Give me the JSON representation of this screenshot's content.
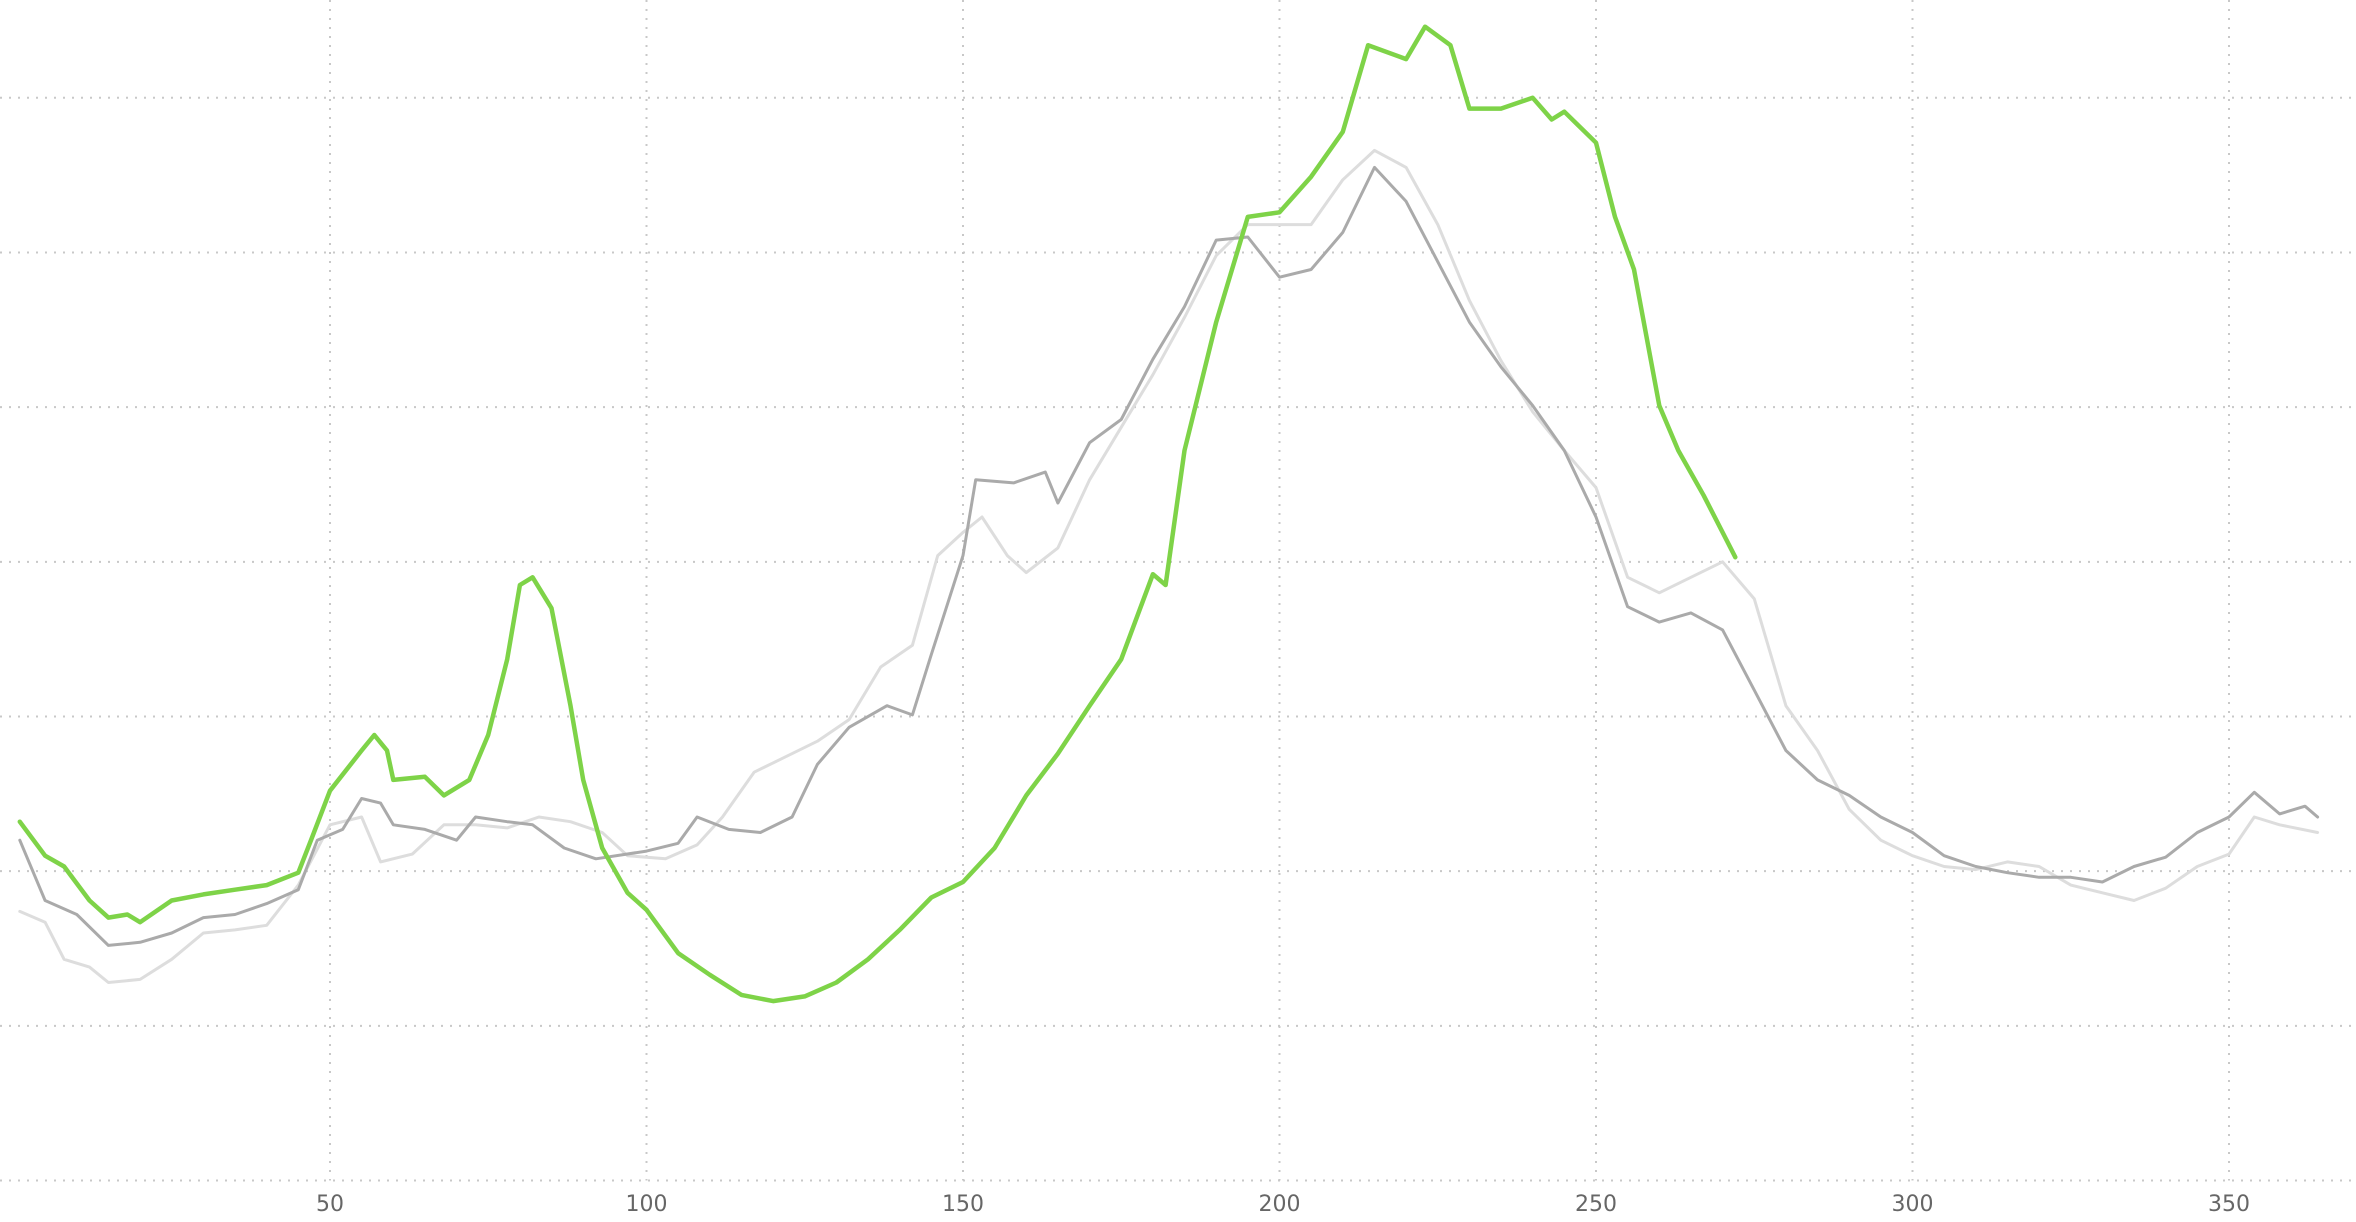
{
  "chart_data": {
    "type": "line",
    "xlim": [
      0,
      365
    ],
    "xticks": [
      50,
      100,
      150,
      200,
      250,
      300,
      350
    ],
    "ylim": [
      0,
      7.6
    ],
    "yticks": [
      0,
      1,
      2,
      3,
      4,
      5,
      6,
      7
    ],
    "ytick_labels": false,
    "grid": true,
    "series": [
      {
        "color": "#dddddd",
        "width": 3,
        "x": [
          1,
          5,
          8,
          12,
          15,
          20,
          25,
          30,
          35,
          40,
          45,
          50,
          55,
          58,
          63,
          68,
          73,
          78,
          83,
          88,
          93,
          97,
          103,
          108,
          112,
          117,
          122,
          127,
          132,
          137,
          142,
          146,
          150,
          153,
          157,
          160,
          165,
          170,
          175,
          180,
          185,
          190,
          195,
          200,
          205,
          210,
          215,
          220,
          225,
          230,
          235,
          240,
          245,
          250,
          255,
          260,
          265,
          270,
          275,
          280,
          285,
          290,
          295,
          300,
          305,
          310,
          315,
          320,
          325,
          330,
          335,
          340,
          345,
          350,
          354,
          358,
          364
        ],
        "values": [
          1.74,
          1.67,
          1.43,
          1.38,
          1.28,
          1.3,
          1.43,
          1.6,
          1.62,
          1.65,
          1.91,
          2.3,
          2.35,
          2.06,
          2.11,
          2.3,
          2.3,
          2.28,
          2.35,
          2.32,
          2.25,
          2.1,
          2.08,
          2.17,
          2.35,
          2.64,
          2.74,
          2.84,
          2.98,
          3.32,
          3.46,
          4.04,
          4.19,
          4.29,
          4.04,
          3.93,
          4.09,
          4.53,
          4.87,
          5.21,
          5.58,
          5.98,
          6.18,
          6.18,
          6.18,
          6.47,
          6.66,
          6.55,
          6.18,
          5.69,
          5.3,
          4.97,
          4.72,
          4.48,
          3.9,
          3.8,
          3.9,
          4.0,
          3.76,
          3.07,
          2.78,
          2.4,
          2.2,
          2.1,
          2.03,
          2.01,
          2.06,
          2.03,
          1.91,
          1.86,
          1.81,
          1.89,
          2.03,
          2.11,
          2.35,
          2.3,
          2.25
        ]
      },
      {
        "color": "#aaaaaa",
        "width": 3,
        "x": [
          1,
          5,
          10,
          15,
          20,
          25,
          30,
          35,
          40,
          45,
          48,
          52,
          55,
          58,
          60,
          65,
          70,
          73,
          78,
          82,
          87,
          92,
          100,
          105,
          108,
          113,
          118,
          123,
          127,
          132,
          138,
          142,
          145,
          150,
          152,
          158,
          163,
          165,
          170,
          175,
          180,
          185,
          190,
          195,
          200,
          205,
          210,
          215,
          220,
          225,
          230,
          235,
          240,
          245,
          250,
          255,
          260,
          265,
          270,
          275,
          280,
          285,
          290,
          295,
          300,
          305,
          310,
          315,
          320,
          325,
          330,
          335,
          340,
          345,
          350,
          354,
          358,
          362,
          364
        ],
        "values": [
          2.2,
          1.81,
          1.72,
          1.52,
          1.54,
          1.6,
          1.7,
          1.72,
          1.79,
          1.88,
          2.2,
          2.27,
          2.47,
          2.44,
          2.3,
          2.27,
          2.2,
          2.35,
          2.32,
          2.3,
          2.15,
          2.08,
          2.13,
          2.18,
          2.35,
          2.27,
          2.25,
          2.35,
          2.69,
          2.93,
          3.07,
          3.01,
          3.4,
          4.04,
          4.53,
          4.51,
          4.58,
          4.38,
          4.77,
          4.92,
          5.31,
          5.65,
          6.08,
          6.1,
          5.84,
          5.89,
          6.13,
          6.55,
          6.33,
          5.94,
          5.55,
          5.26,
          5.01,
          4.72,
          4.29,
          3.71,
          3.61,
          3.67,
          3.56,
          3.17,
          2.78,
          2.59,
          2.49,
          2.35,
          2.25,
          2.1,
          2.03,
          1.99,
          1.96,
          1.96,
          1.93,
          2.03,
          2.09,
          2.25,
          2.35,
          2.51,
          2.37,
          2.42,
          2.35
        ]
      },
      {
        "color": "#7ed348",
        "width": 4.5,
        "x": [
          1,
          5,
          8,
          12,
          15,
          18,
          20,
          25,
          30,
          35,
          40,
          45,
          47,
          50,
          55,
          57,
          59,
          60,
          65,
          68,
          72,
          75,
          78,
          80,
          82,
          85,
          88,
          90,
          93,
          97,
          100,
          105,
          110,
          115,
          120,
          125,
          130,
          135,
          140,
          145,
          150,
          155,
          160,
          165,
          170,
          175,
          180,
          182,
          185,
          190,
          195,
          200,
          205,
          210,
          214,
          220,
          223,
          227,
          230,
          235,
          240,
          243,
          245,
          250,
          253,
          256,
          260,
          263,
          267,
          270,
          272
        ],
        "values": [
          2.32,
          2.1,
          2.03,
          1.81,
          1.7,
          1.72,
          1.67,
          1.81,
          1.85,
          1.88,
          1.91,
          1.99,
          2.2,
          2.52,
          2.78,
          2.88,
          2.78,
          2.59,
          2.61,
          2.49,
          2.59,
          2.88,
          3.37,
          3.85,
          3.9,
          3.7,
          3.07,
          2.59,
          2.15,
          1.86,
          1.75,
          1.47,
          1.33,
          1.2,
          1.16,
          1.19,
          1.28,
          1.43,
          1.62,
          1.83,
          1.93,
          2.15,
          2.49,
          2.76,
          3.07,
          3.37,
          3.92,
          3.85,
          4.72,
          5.55,
          6.23,
          6.26,
          6.49,
          6.78,
          7.34,
          7.25,
          7.46,
          7.34,
          6.93,
          6.93,
          7.0,
          6.86,
          6.91,
          6.71,
          6.23,
          5.89,
          5.01,
          4.72,
          4.43,
          4.19,
          4.03
        ]
      }
    ]
  }
}
